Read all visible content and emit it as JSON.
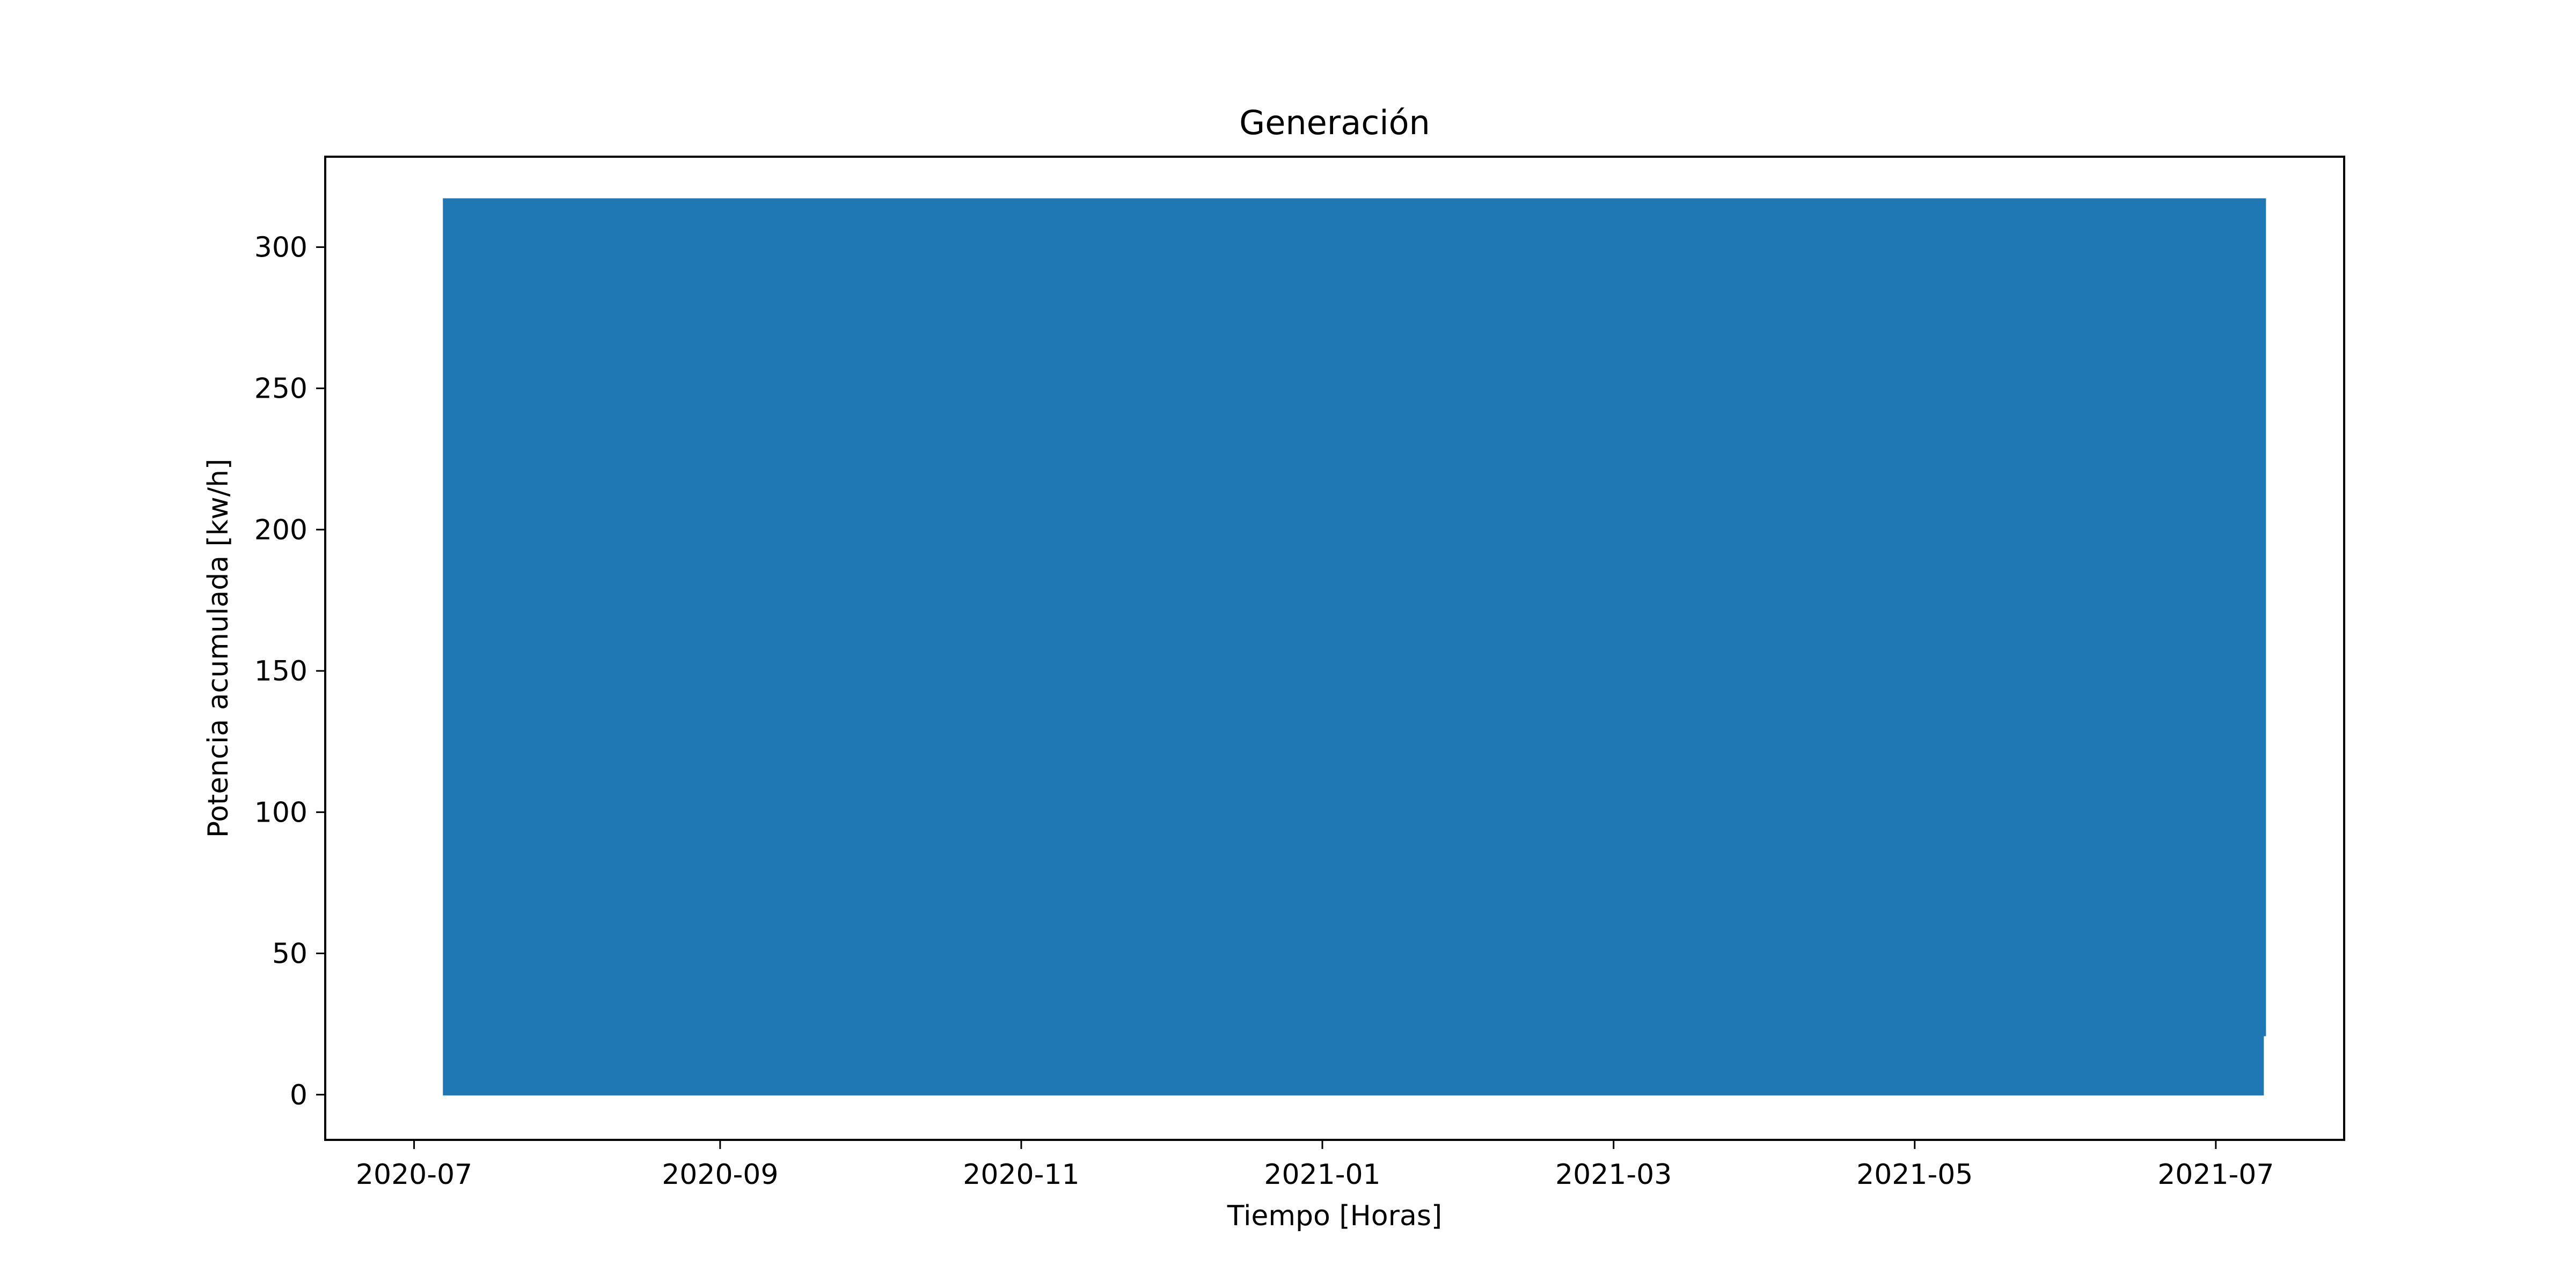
{
  "chart_data": {
    "type": "line",
    "title": "Generación",
    "xlabel": "Tiempo [Horas]",
    "ylabel": "Potencia acumulada [kw/h]",
    "x_range": [
      "2020-06-13",
      "2021-07-27"
    ],
    "ylim": [
      -16,
      332
    ],
    "x_ticks": [
      "2020-07",
      "2020-09",
      "2020-11",
      "2021-01",
      "2021-03",
      "2021-05",
      "2021-07"
    ],
    "y_ticks": [
      0,
      50,
      100,
      150,
      200,
      250,
      300
    ],
    "grid": false,
    "legend": "none",
    "series": [
      {
        "color": "#1f77b4",
        "x_start": "2020-07-07",
        "x_end": "2021-07-11",
        "y_min": 0,
        "y_max": 317,
        "end_value": 21,
        "description_note": "hourly values oscillating daily between 0 and about 317, forming a solid band"
      }
    ]
  }
}
